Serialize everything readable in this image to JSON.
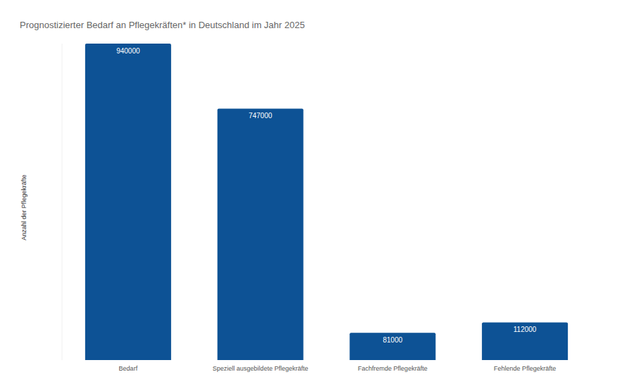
{
  "chart_data": {
    "type": "bar",
    "title": "Prognostizierter Bedarf an Pflegekräften* in Deutschland im Jahr 2025",
    "y_label": "Anzahl der Pflegekräfte",
    "categories": [
      "Bedarf",
      "Speziell ausgebildete Pflegekräfte",
      "Fachfremde Pflegekräfte",
      "Fehlende Pflegekräfte"
    ],
    "values": [
      940000,
      747000,
      81000,
      112000
    ],
    "color": "#0d5295",
    "ylim": [
      0,
      940000
    ],
    "grid": false,
    "data_labels": true,
    "tick_labels": "x"
  }
}
